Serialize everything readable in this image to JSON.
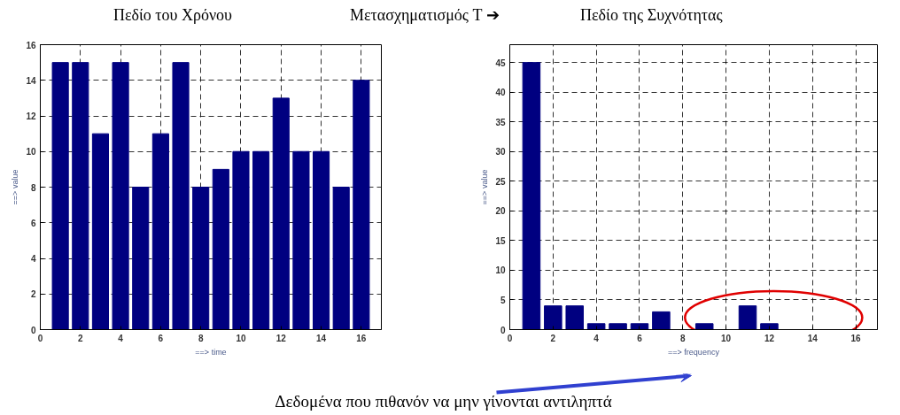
{
  "chart_data": [
    {
      "type": "bar",
      "title": "Πεδίο του Χρόνου",
      "xlabel": "==> time",
      "ylabel": "==> value",
      "annotations": [
        "Μετασχηματισμός T ➔"
      ],
      "x": [
        1,
        2,
        3,
        4,
        5,
        6,
        7,
        8,
        9,
        10,
        11,
        12,
        13,
        14,
        15,
        16
      ],
      "series": [
        {
          "color": "#000080",
          "values": [
            15,
            15,
            11,
            15,
            8,
            11,
            15,
            8,
            9,
            10,
            10,
            13,
            10,
            10,
            8,
            14
          ]
        }
      ],
      "xlim": [
        0,
        17
      ],
      "ylim": [
        0,
        16
      ],
      "xticks": [
        0,
        2,
        4,
        6,
        8,
        10,
        12,
        14,
        16
      ],
      "yticks": [
        0,
        2,
        4,
        6,
        8,
        10,
        12,
        14,
        16
      ],
      "grid": true
    },
    {
      "type": "bar",
      "title": "Πεδίο της Συχνότητας",
      "xlabel": "==> frequency",
      "ylabel": "==> value",
      "annotations": [
        "Δεδομένα που πιθανόν να μην γίνονται αντιληπτά"
      ],
      "x": [
        1,
        2,
        3,
        4,
        5,
        6,
        7,
        8,
        9,
        10,
        11,
        12,
        13,
        14,
        15,
        16
      ],
      "series": [
        {
          "color": "#000080",
          "values": [
            45,
            4,
            4,
            1,
            1,
            1,
            3,
            0,
            1,
            0,
            4,
            1,
            0,
            0,
            0,
            0
          ]
        }
      ],
      "xlim": [
        0,
        17
      ],
      "ylim": [
        0,
        48
      ],
      "xticks": [
        0,
        2,
        4,
        6,
        8,
        10,
        12,
        14,
        16
      ],
      "yticks": [
        0,
        5,
        10,
        15,
        20,
        25,
        30,
        35,
        40,
        45
      ],
      "grid": true
    }
  ]
}
